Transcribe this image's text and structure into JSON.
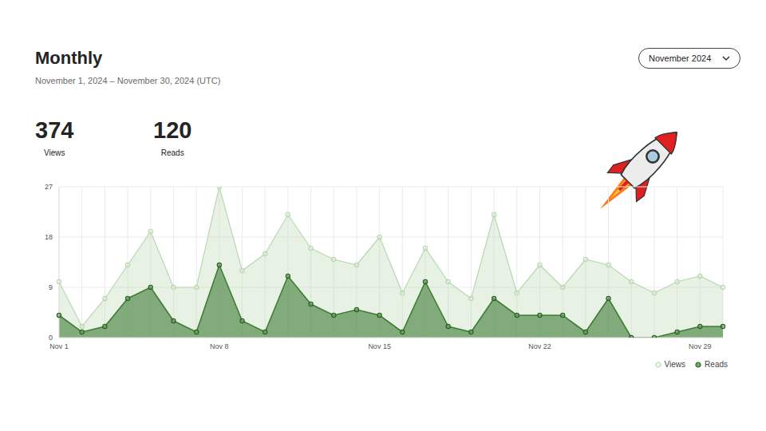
{
  "header": {
    "period": "November 2024",
    "stats": [
      {
        "value": 374,
        "label": "Views"
      },
      {
        "value": 120,
        "label": "Reads"
      }
    ]
  },
  "chart_data": {
    "type": "area",
    "title": "Monthly",
    "subtitle": "November 1, 2024 – November 30, 2024 (UTC)",
    "categories": [
      "Nov 1",
      null,
      null,
      null,
      null,
      null,
      null,
      "Nov 8",
      null,
      null,
      null,
      null,
      null,
      null,
      "Nov 15",
      null,
      null,
      null,
      null,
      null,
      null,
      "Nov 22",
      null,
      null,
      null,
      null,
      null,
      null,
      "Nov 29",
      null
    ],
    "series": [
      {
        "name": "Views",
        "color": "#b9d8b2",
        "marker": "circle",
        "values": [
          10,
          2,
          7,
          13,
          19,
          9,
          9,
          27,
          12,
          15,
          22,
          16,
          14,
          13,
          18,
          8,
          16,
          10,
          7,
          22,
          8,
          13,
          9,
          14,
          13,
          10,
          8,
          10,
          11,
          9
        ]
      },
      {
        "name": "Reads",
        "color": "#3f7d35",
        "marker": "circle",
        "values": [
          4,
          1,
          2,
          7,
          9,
          3,
          1,
          13,
          3,
          1,
          11,
          6,
          4,
          5,
          4,
          1,
          10,
          2,
          1,
          7,
          4,
          4,
          4,
          1,
          7,
          0,
          0,
          1,
          2,
          2
        ]
      }
    ],
    "ylim": [
      0,
      27
    ],
    "yticks": [
      0,
      9,
      18,
      27
    ],
    "grid": true,
    "legend": "lower right"
  }
}
